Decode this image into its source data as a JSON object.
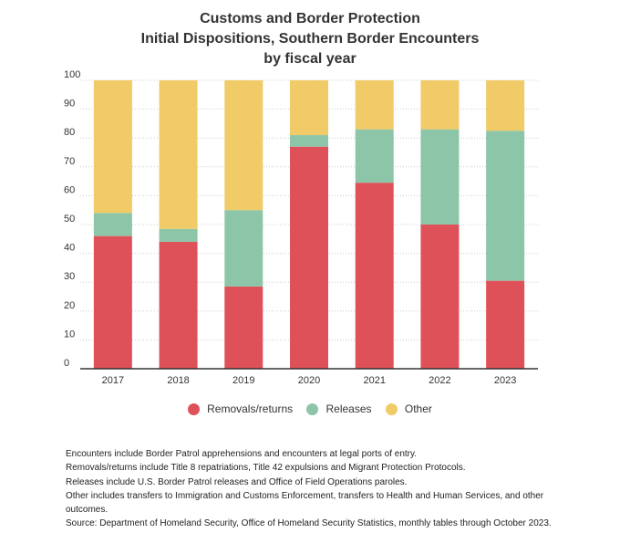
{
  "colors": {
    "removals": "#df5159",
    "releases": "#8dc5a8",
    "other": "#f0cb67",
    "gridline": "#cccccc",
    "axis": "#333333"
  },
  "chart_data": {
    "type": "bar",
    "stacked": true,
    "title_lines": [
      "Customs and Border Protection",
      "Initial Dispositions, Southern Border Encounters",
      "by fiscal year"
    ],
    "categories": [
      "2017",
      "2018",
      "2019",
      "2020",
      "2021",
      "2022",
      "2023"
    ],
    "series": [
      {
        "name": "Removals/returns",
        "values": [
          46,
          44,
          28.5,
          77,
          64.5,
          50,
          30.5
        ]
      },
      {
        "name": "Releases",
        "values": [
          8,
          4.5,
          26.5,
          4,
          18.5,
          33,
          52
        ]
      },
      {
        "name": "Other",
        "values": [
          46,
          51.5,
          45,
          19,
          17,
          17,
          17.5
        ]
      }
    ],
    "y_ticks": [
      "0",
      "10",
      "20",
      "30",
      "40",
      "50",
      "60",
      "70",
      "80",
      "90",
      "100"
    ],
    "ylim": [
      0,
      100
    ],
    "xlabel": "",
    "ylabel": "",
    "grid": true,
    "legend_position": "bottom"
  },
  "notes": [
    "Encounters include Border Patrol apprehensions and encounters at legal ports of entry.",
    "Removals/returns include Title 8 repatriations, Title 42 expulsions and Migrant Protection Protocols.",
    "Releases include U.S. Border Patrol releases and Office of Field Operations paroles.",
    "Other includes transfers to Immigration and Customs Enforcement, transfers to Health and Human Services, and other outcomes.",
    "Source: Department of Homeland Security, Office of Homeland Security Statistics, monthly tables through October 2023."
  ]
}
